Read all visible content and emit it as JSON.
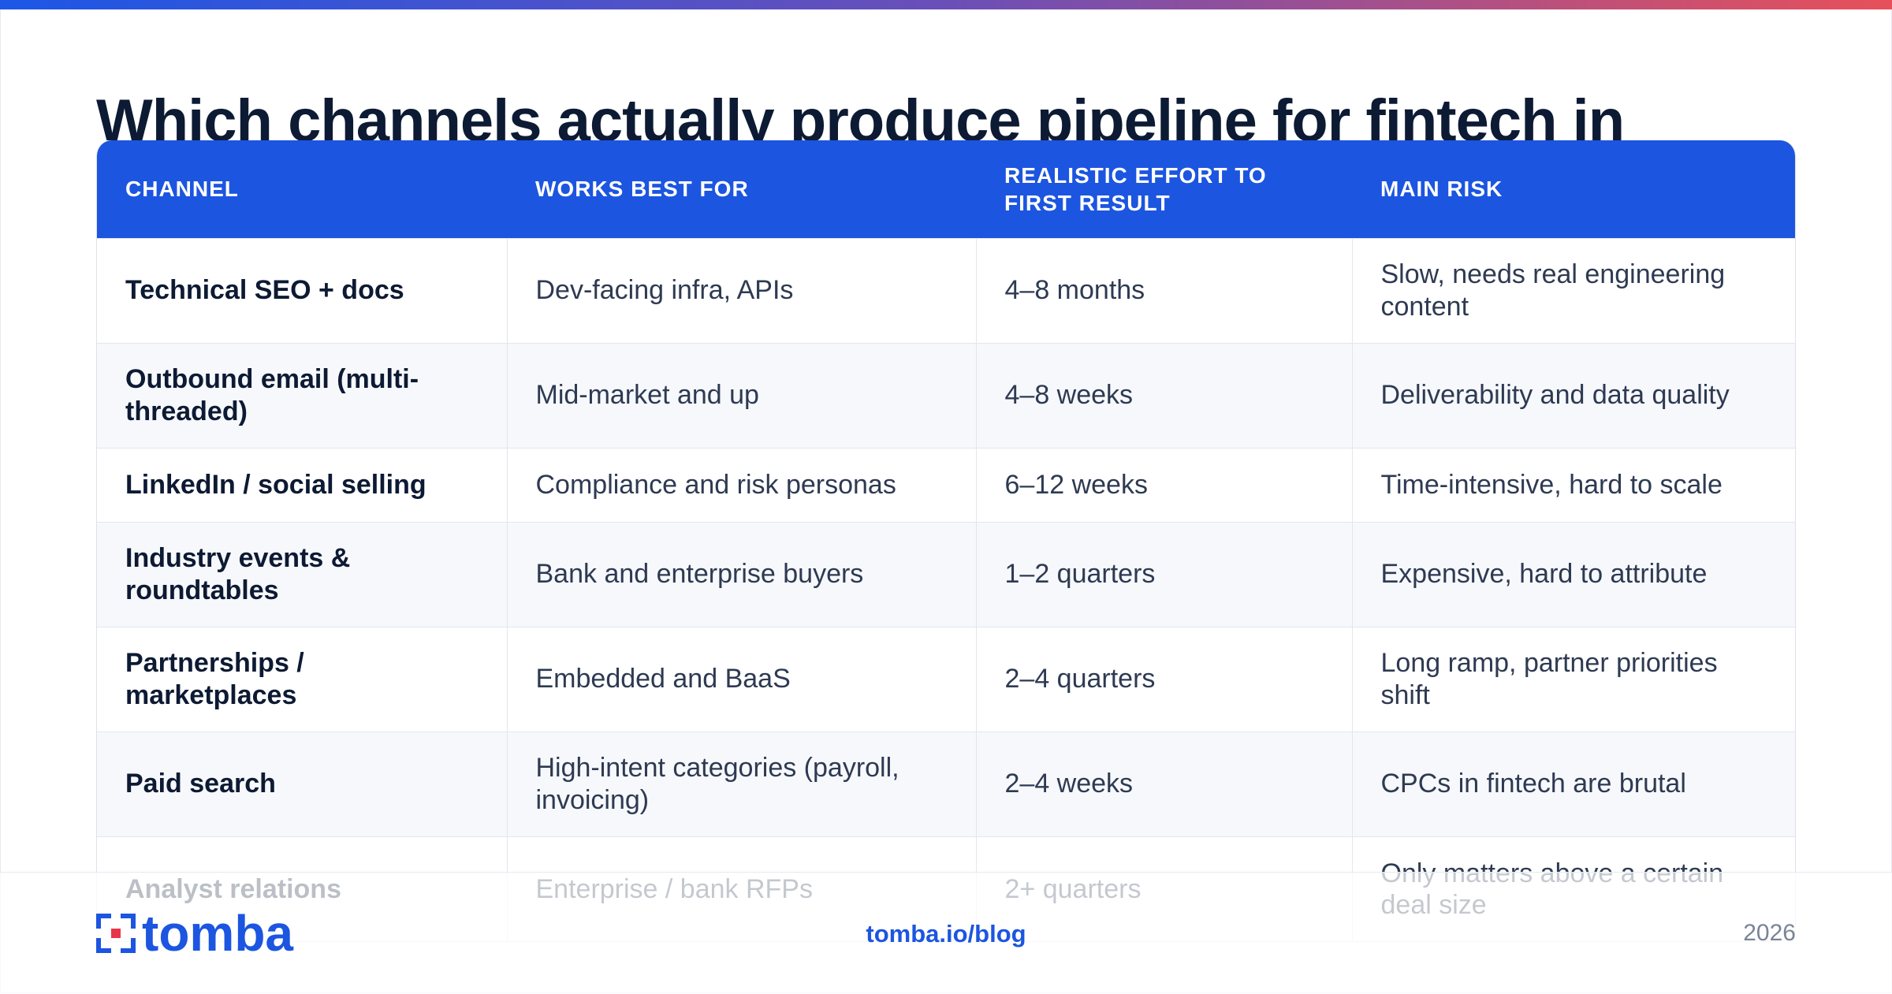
{
  "headline": "Which channels actually produce pipeline for fintech in",
  "table": {
    "headers": [
      "CHANNEL",
      "WORKS BEST FOR",
      "REALISTIC EFFORT TO FIRST RESULT",
      "MAIN RISK"
    ],
    "rows": [
      [
        "Technical SEO + docs",
        "Dev-facing infra, APIs",
        "4–8 months",
        "Slow, needs real engineering content"
      ],
      [
        "Outbound email (multi-threaded)",
        "Mid-market and up",
        "4–8 weeks",
        "Deliverability and data quality"
      ],
      [
        "LinkedIn / social selling",
        "Compliance and risk personas",
        "6–12 weeks",
        "Time-intensive, hard to scale"
      ],
      [
        "Industry events & roundtables",
        "Bank and enterprise buyers",
        "1–2 quarters",
        "Expensive, hard to attribute"
      ],
      [
        "Partnerships / marketplaces",
        "Embedded and BaaS",
        "2–4 quarters",
        "Long ramp, partner priorities shift"
      ],
      [
        "Paid search",
        "High-intent categories (payroll, invoicing)",
        "2–4 weeks",
        "CPCs in fintech are brutal"
      ],
      [
        "Analyst relations",
        "Enterprise / bank RFPs",
        "2+ quarters",
        "Only matters above a certain deal size"
      ]
    ]
  },
  "footer": {
    "logo_text": "tomba",
    "site": "tomba.io/blog",
    "year": "2026"
  },
  "colors": {
    "accent": "#1c55e0",
    "gradient_start": "#1c57e6",
    "gradient_end": "#e7505a",
    "heading": "#0d1a33",
    "body_text": "#2e3a52"
  },
  "icons": {
    "logo": "tomba-logo-icon"
  }
}
